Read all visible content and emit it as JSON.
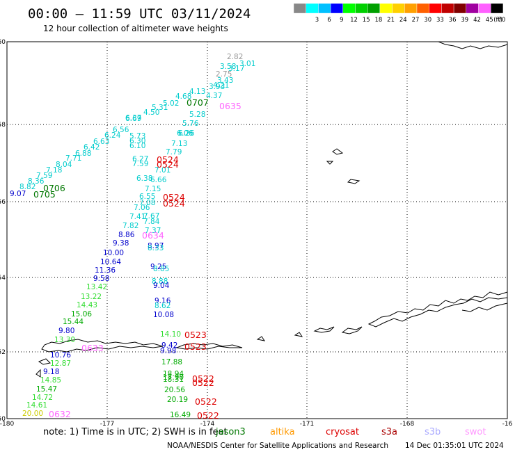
{
  "header": {
    "title": "00:00 – 11:59 UTC 03/11/2024",
    "subtitle": "12 hour collection of altimeter wave heights"
  },
  "legend": {
    "unit": "(ft)",
    "bins": [
      {
        "label": "",
        "color": "#888888"
      },
      {
        "label": "3",
        "color": "#00ffff"
      },
      {
        "label": "6",
        "color": "#00c0ff"
      },
      {
        "label": "9",
        "color": "#0000ff"
      },
      {
        "label": "12",
        "color": "#00ff00"
      },
      {
        "label": "15",
        "color": "#00d000"
      },
      {
        "label": "18",
        "color": "#00a000"
      },
      {
        "label": "21",
        "color": "#ffff00"
      },
      {
        "label": "24",
        "color": "#ffd000"
      },
      {
        "label": "27",
        "color": "#ffa000"
      },
      {
        "label": "30",
        "color": "#ff6000"
      },
      {
        "label": "33",
        "color": "#ff0000"
      },
      {
        "label": "36",
        "color": "#c00000"
      },
      {
        "label": "39",
        "color": "#800000"
      },
      {
        "label": "42",
        "color": "#a000a0"
      },
      {
        "label": "45",
        "color": "#ff60ff"
      },
      {
        "label": "70",
        "color": "#000000"
      }
    ]
  },
  "axes": {
    "x_ticks": [
      "-180",
      "-177",
      "-174",
      "-171",
      "-168",
      "-16"
    ],
    "y_ticks": [
      "60",
      "58",
      "56",
      "54",
      "52",
      "50"
    ]
  },
  "wave_labels": [
    {
      "t": "2.82",
      "c": "#999999"
    },
    {
      "t": "3.01",
      "c": "#00cccc"
    },
    {
      "t": "3.58",
      "c": "#00cccc"
    },
    {
      "t": "2.75",
      "c": "#999999"
    },
    {
      "t": "3.17",
      "c": "#00cccc"
    },
    {
      "t": "3.43",
      "c": "#00cccc"
    },
    {
      "t": "4.21",
      "c": "#00cccc"
    },
    {
      "t": "3.93",
      "c": "#00cccc"
    },
    {
      "t": "4.13",
      "c": "#00cccc"
    },
    {
      "t": "4.37",
      "c": "#00cccc"
    },
    {
      "t": "4.68",
      "c": "#00cccc"
    },
    {
      "t": "5.02",
      "c": "#00cccc"
    },
    {
      "t": "5.31",
      "c": "#00cccc"
    },
    {
      "t": "4.50",
      "c": "#00cccc"
    },
    {
      "t": "5.28",
      "c": "#00cccc"
    },
    {
      "t": "6.06",
      "c": "#00cccc"
    },
    {
      "t": "6.37",
      "c": "#00cccc"
    },
    {
      "t": "5.76",
      "c": "#00cccc"
    },
    {
      "t": "6.69",
      "c": "#00cccc"
    },
    {
      "t": "6.56",
      "c": "#00cccc"
    },
    {
      "t": "6.26",
      "c": "#00cccc"
    },
    {
      "t": "6.24",
      "c": "#00cccc"
    },
    {
      "t": "5.73",
      "c": "#00cccc"
    },
    {
      "t": "6.63",
      "c": "#00cccc"
    },
    {
      "t": "6.30",
      "c": "#00cccc"
    },
    {
      "t": "6.42",
      "c": "#00cccc"
    },
    {
      "t": "6.10",
      "c": "#00cccc"
    },
    {
      "t": "7.13",
      "c": "#00cccc"
    },
    {
      "t": "6.88",
      "c": "#00cccc"
    },
    {
      "t": "7.79",
      "c": "#00cccc"
    },
    {
      "t": "7.71",
      "c": "#00cccc"
    },
    {
      "t": "6.27",
      "c": "#00cccc"
    },
    {
      "t": "8.04",
      "c": "#00cccc"
    },
    {
      "t": "7.59",
      "c": "#00cccc"
    },
    {
      "t": "7.18",
      "c": "#00cccc"
    },
    {
      "t": "7.01",
      "c": "#00cccc"
    },
    {
      "t": "7.59",
      "c": "#00cccc"
    },
    {
      "t": "6.38",
      "c": "#00cccc"
    },
    {
      "t": "8.36",
      "c": "#00cccc"
    },
    {
      "t": "6.66",
      "c": "#00cccc"
    },
    {
      "t": "8.82",
      "c": "#00cccc"
    },
    {
      "t": "7.15",
      "c": "#00cccc"
    },
    {
      "t": "9.07",
      "c": "#0000cc"
    },
    {
      "t": "6.55",
      "c": "#00cccc"
    },
    {
      "t": "7.08",
      "c": "#00cccc"
    },
    {
      "t": "7.06",
      "c": "#00cccc"
    },
    {
      "t": "7.41",
      "c": "#00cccc"
    },
    {
      "t": "7.67",
      "c": "#00cccc"
    },
    {
      "t": "7.84",
      "c": "#00cccc"
    },
    {
      "t": "7.82",
      "c": "#00cccc"
    },
    {
      "t": "7.37",
      "c": "#00cccc"
    },
    {
      "t": "8.86",
      "c": "#0000cc"
    },
    {
      "t": "9.38",
      "c": "#0000cc"
    },
    {
      "t": "8.97",
      "c": "#0000cc"
    },
    {
      "t": "8.33",
      "c": "#00cccc"
    },
    {
      "t": "10.00",
      "c": "#0000cc"
    },
    {
      "t": "10.64",
      "c": "#0000cc"
    },
    {
      "t": "9.25",
      "c": "#0000cc"
    },
    {
      "t": "11.36",
      "c": "#0000cc"
    },
    {
      "t": "8.85",
      "c": "#00cccc"
    },
    {
      "t": "9.58",
      "c": "#0000cc"
    },
    {
      "t": "8.88",
      "c": "#00cccc"
    },
    {
      "t": "9.04",
      "c": "#0000cc"
    },
    {
      "t": "13.42",
      "c": "#33dd33"
    },
    {
      "t": "13.22",
      "c": "#33dd33"
    },
    {
      "t": "9.16",
      "c": "#0000cc"
    },
    {
      "t": "14.43",
      "c": "#33dd33"
    },
    {
      "t": "8.62",
      "c": "#00cccc"
    },
    {
      "t": "15.06",
      "c": "#00aa00"
    },
    {
      "t": "10.08",
      "c": "#0000cc"
    },
    {
      "t": "15.44",
      "c": "#00aa00"
    },
    {
      "t": "9.80",
      "c": "#0000cc"
    },
    {
      "t": "14.10",
      "c": "#33dd33"
    },
    {
      "t": "13.30",
      "c": "#33dd33"
    },
    {
      "t": "9.42",
      "c": "#0000cc"
    },
    {
      "t": "10.76",
      "c": "#0000cc"
    },
    {
      "t": "9.98",
      "c": "#0000cc"
    },
    {
      "t": "12.87",
      "c": "#33dd33"
    },
    {
      "t": "17.88",
      "c": "#00aa00"
    },
    {
      "t": "9.18",
      "c": "#0000cc"
    },
    {
      "t": "18.94",
      "c": "#00aa00"
    },
    {
      "t": "14.85",
      "c": "#33dd33"
    },
    {
      "t": "17.90",
      "c": "#00aa00"
    },
    {
      "t": "15.47",
      "c": "#00aa00"
    },
    {
      "t": "18.31",
      "c": "#00aa00"
    },
    {
      "t": "20.56",
      "c": "#00aa00"
    },
    {
      "t": "14.72",
      "c": "#33dd33"
    },
    {
      "t": "20.19",
      "c": "#00aa00"
    },
    {
      "t": "14.61",
      "c": "#33dd33"
    },
    {
      "t": "20.00",
      "c": "#cccc00"
    },
    {
      "t": "16.49",
      "c": "#00aa00"
    },
    {
      "t": "19.45",
      "c": "#00aa00"
    },
    {
      "t": "18.50",
      "c": "#00aa00"
    }
  ],
  "time_labels": [
    {
      "t": "0707",
      "c": "#007700"
    },
    {
      "t": "0635",
      "c": "#ff66ff"
    },
    {
      "t": "0524",
      "c": "#dd0000"
    },
    {
      "t": "0524",
      "c": "#dd0000"
    },
    {
      "t": "0706",
      "c": "#007700"
    },
    {
      "t": "0705",
      "c": "#007700"
    },
    {
      "t": "0524",
      "c": "#dd0000"
    },
    {
      "t": "0524",
      "c": "#dd0000"
    },
    {
      "t": "0634",
      "c": "#ff66ff"
    },
    {
      "t": "0633",
      "c": "#ff66ff"
    },
    {
      "t": "0523",
      "c": "#dd0000"
    },
    {
      "t": "0523",
      "c": "#dd0000"
    },
    {
      "t": "0522",
      "c": "#dd0000"
    },
    {
      "t": "0522",
      "c": "#dd0000"
    },
    {
      "t": "0522",
      "c": "#dd0000"
    },
    {
      "t": "0632",
      "c": "#ff66ff"
    },
    {
      "t": "0522",
      "c": "#dd0000"
    }
  ],
  "footer": {
    "note": "note:  1) Time is in UTC; 2) SWH is in feet",
    "satellites": [
      {
        "name": "jason3",
        "color": "#007700"
      },
      {
        "name": "altika",
        "color": "#ff9900"
      },
      {
        "name": "cryosat",
        "color": "#dd0000"
      },
      {
        "name": "s3a",
        "color": "#aa0000"
      },
      {
        "name": "s3b",
        "color": "#aaaaff"
      },
      {
        "name": "swot",
        "color": "#ff99ff"
      }
    ],
    "credit": "NOAA/NESDIS Center for Satellite Applications and Research",
    "timestamp": "14 Dec 01:35:01 UTC 2024"
  }
}
